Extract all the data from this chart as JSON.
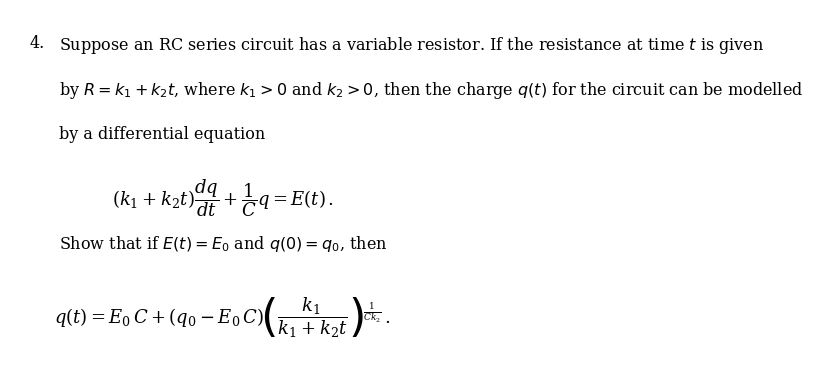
{
  "background_color": "#ffffff",
  "text_color": "#000000",
  "number": "4.",
  "paragraph1": "Suppose an RC series circuit has a variable resistor. If the resistance at time $t$ is given",
  "paragraph2": "by $R = k_1 +k_2t$, where $k_1 > 0$ and $k_2 > 0$, then the charge $q(t)$ for the circuit can be modelled",
  "paragraph3": "by a differential equation",
  "paragraph4": "Show that if $E(t) = E_0$ and $q(0) = q_0$, then",
  "font_size_text": 11.5,
  "font_size_eq": 13,
  "font_size_number": 12
}
